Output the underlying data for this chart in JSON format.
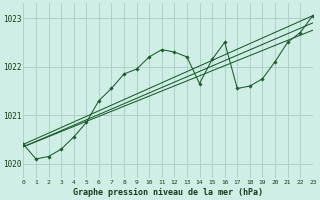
{
  "title": "Graphe pression niveau de la mer (hPa)",
  "bg_color": "#ceeee6",
  "grid_color": "#aaccc4",
  "line_color": "#1a5c2a",
  "xlim": [
    0,
    23
  ],
  "ylim": [
    1019.7,
    1023.3
  ],
  "yticks": [
    1020,
    1021,
    1022,
    1023
  ],
  "xticks": [
    0,
    1,
    2,
    3,
    4,
    5,
    6,
    7,
    8,
    9,
    10,
    11,
    12,
    13,
    14,
    15,
    16,
    17,
    18,
    19,
    20,
    21,
    22,
    23
  ],
  "series": [
    {
      "x": [
        0,
        1,
        2,
        3,
        4,
        5,
        6,
        7,
        8,
        9,
        10,
        11,
        12,
        13,
        14,
        15,
        16,
        17,
        18,
        19,
        20,
        21,
        22,
        23
      ],
      "y": [
        1020.4,
        1020.1,
        1020.15,
        1020.3,
        1020.55,
        1020.85,
        1021.3,
        1021.55,
        1021.85,
        1021.95,
        1022.2,
        1022.35,
        1022.3,
        1022.2,
        1021.65,
        1022.15,
        1022.5,
        1021.55,
        1021.6,
        1021.75,
        1022.1,
        1022.5,
        1022.7,
        1023.05
      ],
      "has_markers": true
    },
    {
      "x": [
        0,
        23
      ],
      "y": [
        1020.4,
        1023.05
      ],
      "has_markers": false
    },
    {
      "x": [
        0,
        23
      ],
      "y": [
        1020.35,
        1022.9
      ],
      "has_markers": false
    },
    {
      "x": [
        0,
        23
      ],
      "y": [
        1020.35,
        1022.75
      ],
      "has_markers": false
    }
  ]
}
